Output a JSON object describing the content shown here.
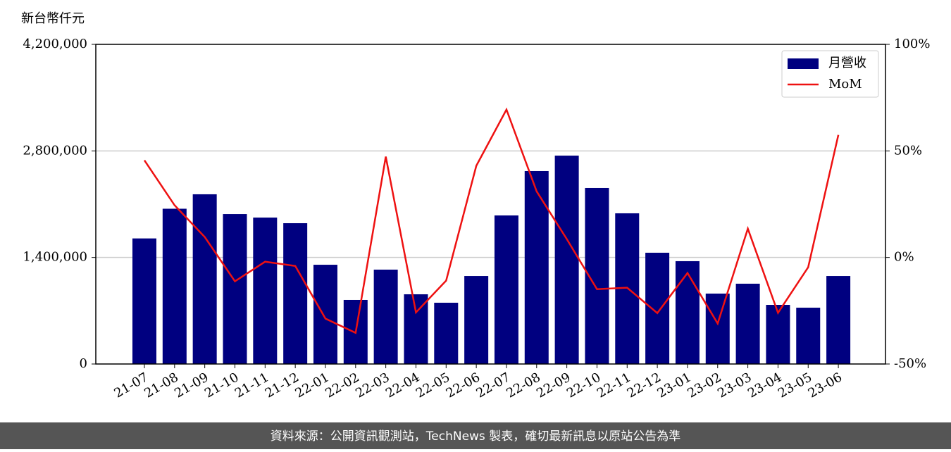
{
  "chart_data": {
    "type": "bar_line",
    "y_label": "新台幣仟元",
    "source": "資料來源：公開資訊觀測站，TechNews 製表，確切最新訊息以原站公告為準",
    "categories": [
      "21-07",
      "21-08",
      "21-09",
      "21-10",
      "21-11",
      "21-12",
      "22-01",
      "22-02",
      "22-03",
      "22-04",
      "22-05",
      "22-06",
      "22-07",
      "22-08",
      "22-09",
      "22-10",
      "22-11",
      "22-12",
      "23-01",
      "23-02",
      "23-03",
      "23-04",
      "23-05",
      "23-06"
    ],
    "series": [
      {
        "name": "月營收",
        "type": "bar",
        "color": "#000080",
        "values": [
          1650000,
          2040000,
          2230000,
          1970000,
          1924000,
          1850000,
          1304000,
          842000,
          1240000,
          916000,
          805000,
          1156000,
          1952000,
          2535000,
          2738000,
          2313000,
          1980000,
          1462000,
          1351000,
          925000,
          1055000,
          777000,
          740000,
          1156000
        ]
      },
      {
        "name": "MoM",
        "type": "line",
        "axis": "y2",
        "color": "#ee1111",
        "values": [
          45.6,
          24.5,
          9.6,
          -11.2,
          -2,
          -4,
          -28.7,
          -35.4,
          47.3,
          -25.8,
          -10.9,
          43,
          69.4,
          31,
          8.6,
          -14.9,
          -14.2,
          -26.1,
          -7.3,
          -31,
          13.5,
          -26,
          -4.6,
          57.5
        ]
      }
    ],
    "ylim": [
      0,
      4200000
    ],
    "yticks": [
      0,
      {
        "value": 1400000,
        "label": "1,400,000"
      },
      {
        "value": 2800000,
        "label": "2,800,000"
      },
      {
        "value": 4200000,
        "label": "4,200,000"
      }
    ],
    "y2lim": [
      -50,
      100
    ],
    "y2ticks": [
      {
        "value": -50,
        "label": "-50%"
      },
      {
        "value": 0,
        "label": "0%"
      },
      {
        "value": 50,
        "label": "50%"
      },
      {
        "value": 100,
        "label": "100%"
      }
    ],
    "grid": true,
    "legend": "upper right"
  }
}
